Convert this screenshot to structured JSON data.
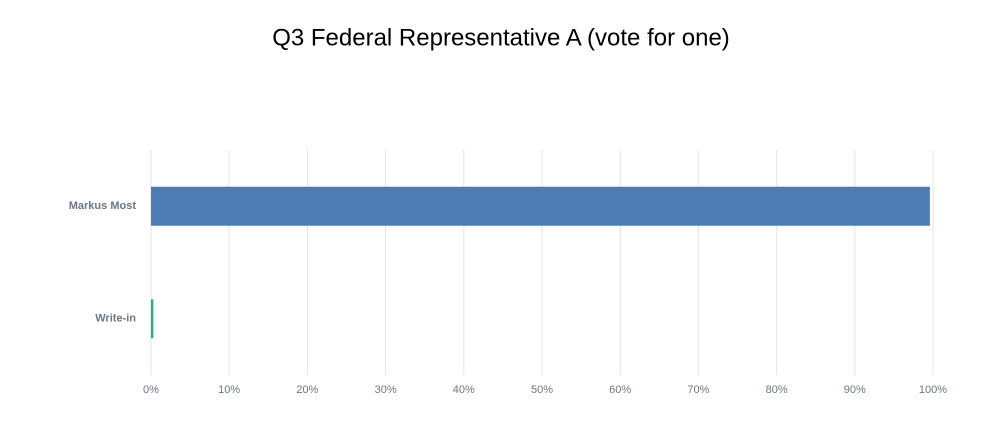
{
  "chart_data": {
    "type": "bar",
    "orientation": "horizontal",
    "title": "Q3 Federal Representative A (vote for one)",
    "categories": [
      "Markus Most",
      "Write-in"
    ],
    "values": [
      99.6,
      0.3
    ],
    "colors": [
      "#4e7bb4",
      "#1fb37a"
    ],
    "xlim": [
      0,
      100
    ],
    "xticks": [
      {
        "value": 0,
        "label": "0%"
      },
      {
        "value": 10,
        "label": "10%"
      },
      {
        "value": 20,
        "label": "20%"
      },
      {
        "value": 30,
        "label": "30%"
      },
      {
        "value": 40,
        "label": "40%"
      },
      {
        "value": 50,
        "label": "50%"
      },
      {
        "value": 60,
        "label": "60%"
      },
      {
        "value": 70,
        "label": "70%"
      },
      {
        "value": 80,
        "label": "80%"
      },
      {
        "value": 90,
        "label": "90%"
      },
      {
        "value": 100,
        "label": "100%"
      }
    ],
    "grid": true
  }
}
